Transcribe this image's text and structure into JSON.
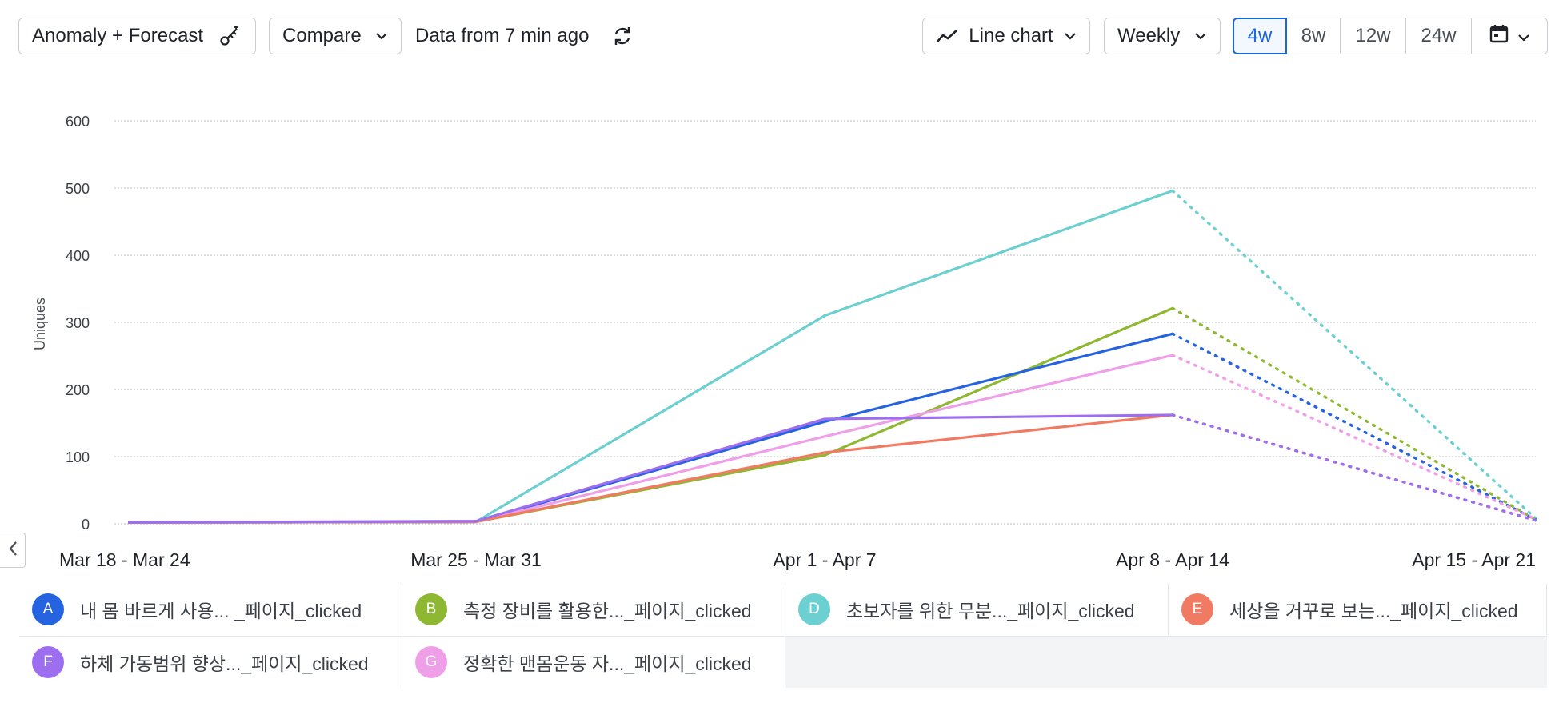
{
  "toolbar": {
    "anomaly_label": "Anomaly + Forecast",
    "compare_label": "Compare",
    "data_freshness": "Data from 7 min ago",
    "chart_type_label": "Line chart",
    "interval_label": "Weekly",
    "ranges": [
      "4w",
      "8w",
      "12w",
      "24w"
    ],
    "active_range": "4w"
  },
  "colors": {
    "A": "#2563e0",
    "B": "#8fb832",
    "D": "#6ccfd0",
    "E": "#f07b62",
    "F": "#9d6ff0",
    "G": "#ef9ee8",
    "accent": "#1a66dd"
  },
  "chart_data": {
    "type": "line",
    "ylabel": "Uniques",
    "ylim": [
      0,
      600
    ],
    "yticks": [
      0,
      100,
      200,
      300,
      400,
      500,
      600
    ],
    "categories": [
      "Mar 18 - Mar 24",
      "Mar 25 - Mar 31",
      "Apr 1 - Apr 7",
      "Apr 8 - Apr 14",
      "Apr 15 - Apr 21"
    ],
    "forecast_from_index": 3,
    "series": [
      {
        "key": "D",
        "name": "초보자를 위한 무분..._페이지_clicked",
        "values": [
          2,
          3,
          310,
          496,
          8
        ]
      },
      {
        "key": "B",
        "name": "측정 장비를 활용한..._페이지_clicked",
        "values": [
          2,
          3,
          102,
          321,
          6
        ]
      },
      {
        "key": "A",
        "name": "내 몸 바르게 사용... _페이지_clicked",
        "values": [
          2,
          3,
          152,
          283,
          6
        ]
      },
      {
        "key": "G",
        "name": "정확한 맨몸운동 자..._페이지_clicked",
        "values": [
          2,
          3,
          130,
          251,
          7
        ]
      },
      {
        "key": "E",
        "name": "세상을 거꾸로 보는..._페이지_clicked",
        "values": [
          2,
          3,
          106,
          162,
          5
        ]
      },
      {
        "key": "F",
        "name": "하체 가동범위 향상..._페이지_clicked",
        "values": [
          2,
          4,
          156,
          162,
          5
        ]
      }
    ]
  },
  "legend": [
    {
      "key": "A",
      "label": "내 몸 바르게 사용... _페이지_clicked"
    },
    {
      "key": "B",
      "label": "측정 장비를 활용한..._페이지_clicked"
    },
    {
      "key": "D",
      "label": "초보자를 위한 무분..._페이지_clicked"
    },
    {
      "key": "E",
      "label": "세상을 거꾸로 보는..._페이지_clicked"
    },
    {
      "key": "F",
      "label": "하체 가동범위 향상..._페이지_clicked"
    },
    {
      "key": "G",
      "label": "정확한 맨몸운동 자..._페이지_clicked"
    }
  ]
}
